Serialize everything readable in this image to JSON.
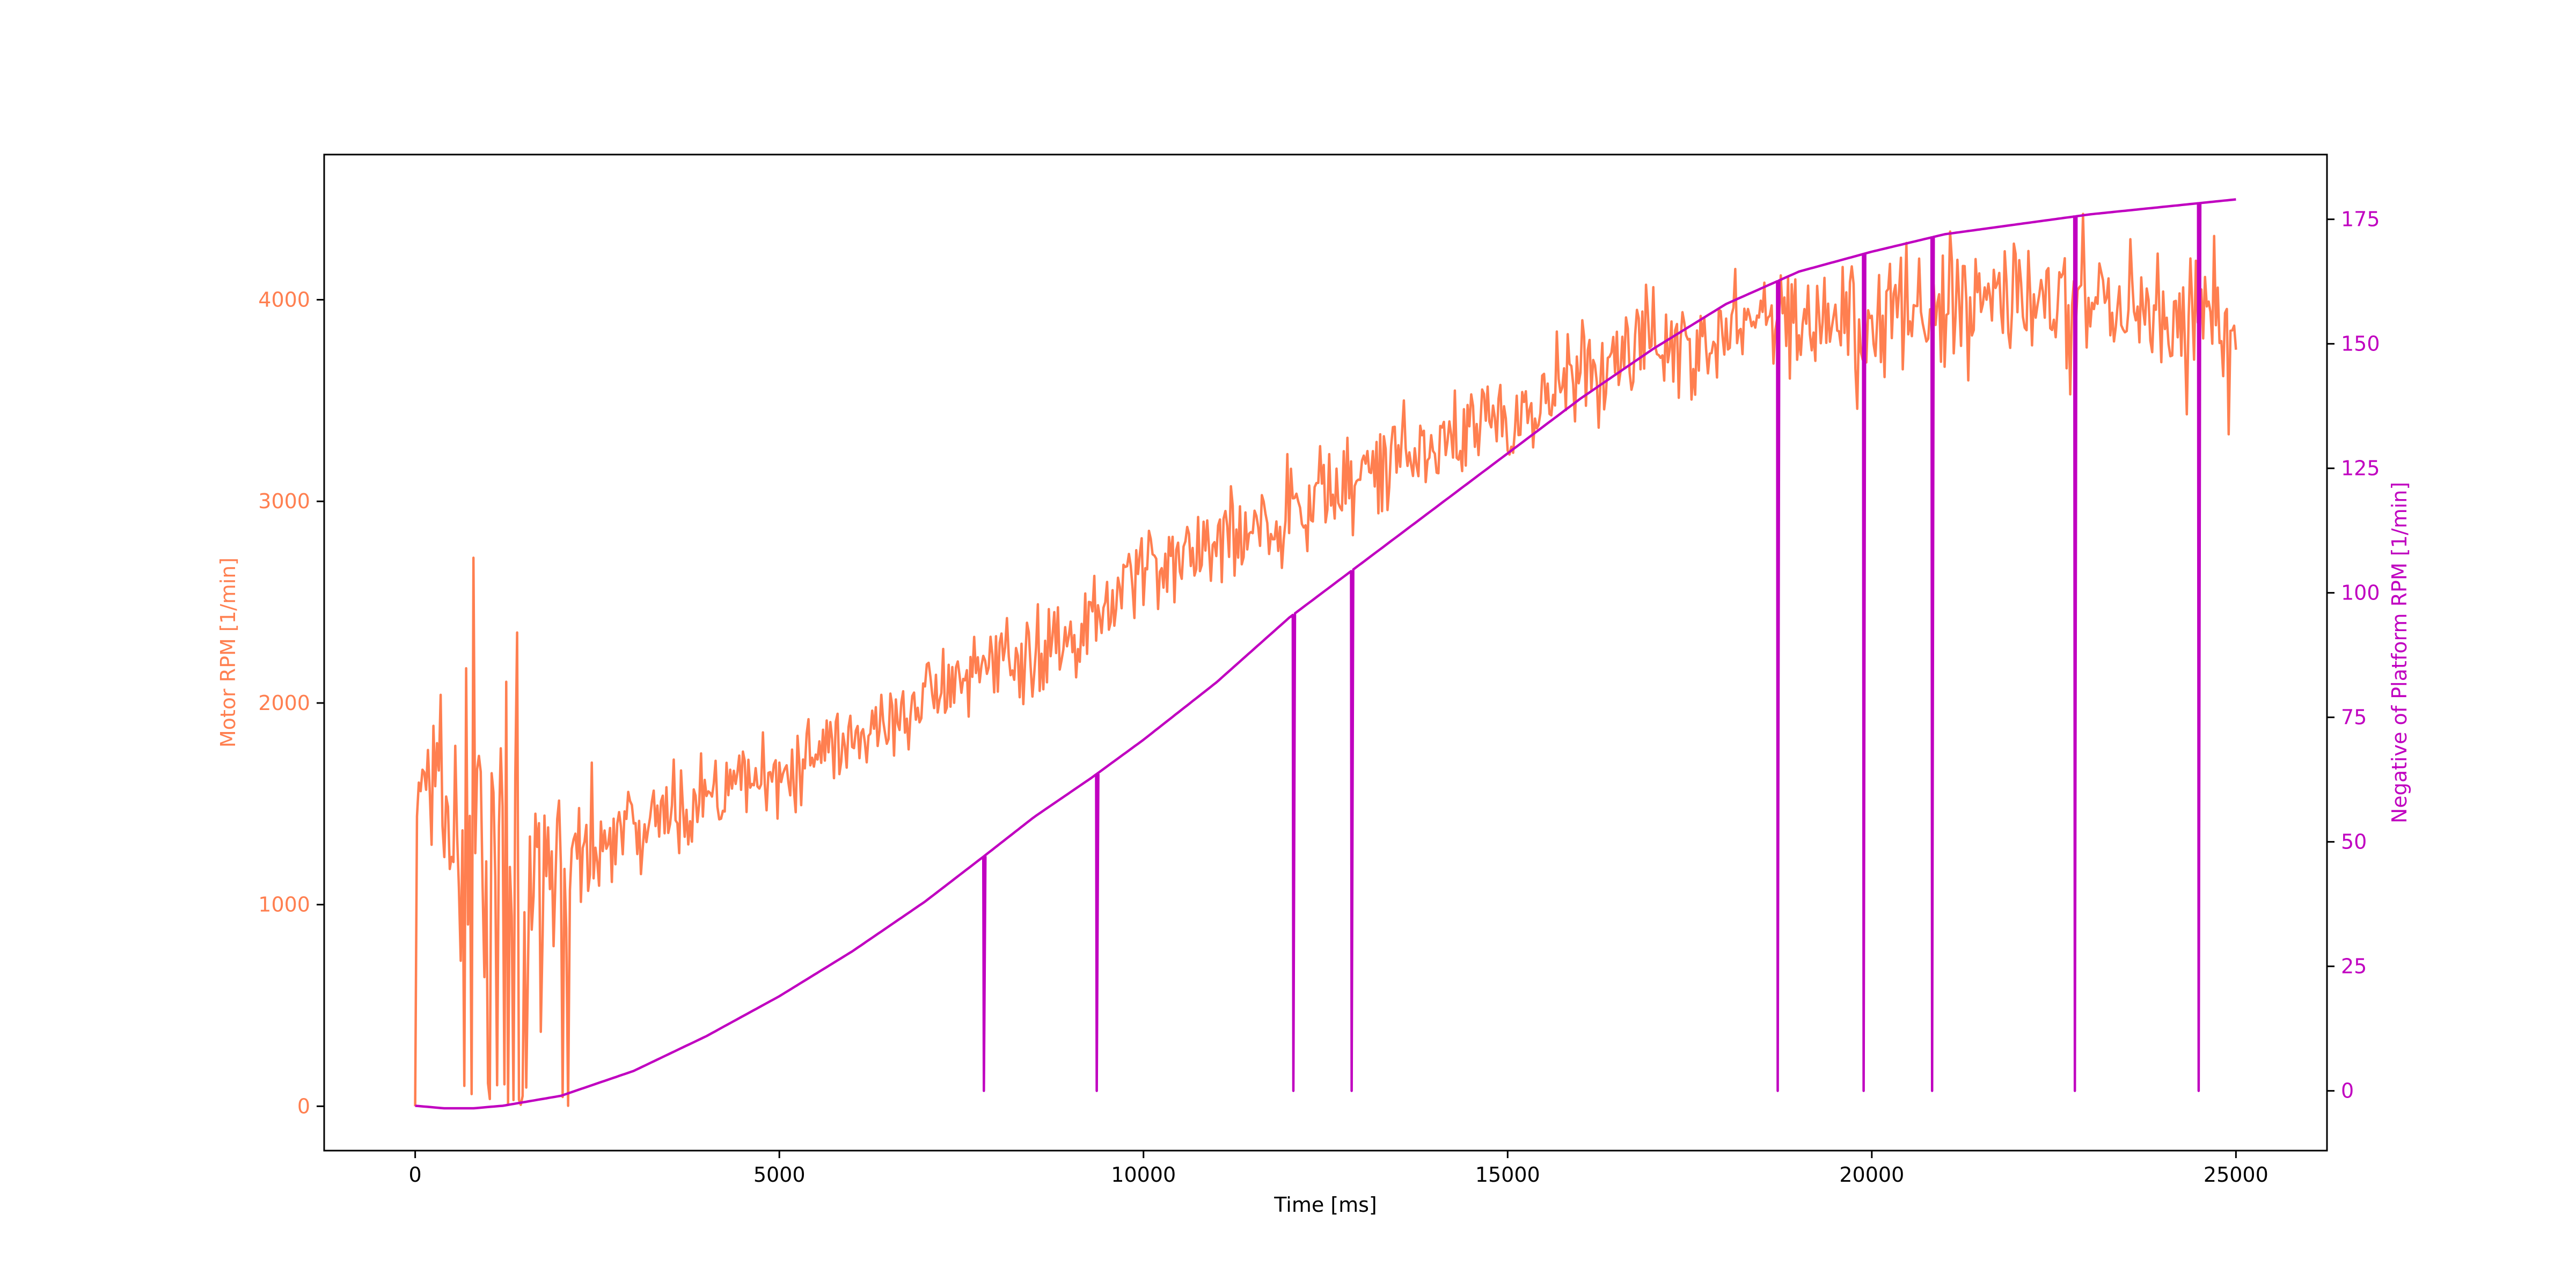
{
  "chart_data": {
    "type": "line",
    "title": "",
    "xlabel": "Time [ms]",
    "ylabel": "Motor RPM [1/min]",
    "y2label": "Negative of Platform RPM [1/min]",
    "xlim": [
      -1250,
      26250
    ],
    "ylim": [
      -220,
      4720
    ],
    "y2lim": [
      -12,
      188
    ],
    "x_ticks": [
      0,
      5000,
      10000,
      15000,
      20000,
      25000
    ],
    "y_ticks": [
      0,
      1000,
      2000,
      3000,
      4000
    ],
    "y2_ticks": [
      0,
      25,
      50,
      75,
      100,
      125,
      150,
      175
    ],
    "grid": false,
    "series": [
      {
        "color": "#ff7f50",
        "axis": "left",
        "trend": [
          [
            0,
            0
          ],
          [
            30,
            1650
          ],
          [
            300,
            1600
          ],
          [
            800,
            1300
          ],
          [
            2000,
            1200
          ],
          [
            3000,
            1400
          ],
          [
            5000,
            1650
          ],
          [
            7000,
            2000
          ],
          [
            9000,
            2350
          ],
          [
            10000,
            2650
          ],
          [
            12000,
            2950
          ],
          [
            14000,
            3300
          ],
          [
            16000,
            3600
          ],
          [
            17000,
            3800
          ],
          [
            18000,
            3880
          ],
          [
            20000,
            3950
          ],
          [
            22000,
            3980
          ],
          [
            24000,
            3950
          ],
          [
            25000,
            3850
          ]
        ],
        "noise": [
          [
            0,
            150
          ],
          [
            300,
            500
          ],
          [
            600,
            1500
          ],
          [
            1500,
            1450
          ],
          [
            2200,
            450
          ],
          [
            4000,
            300
          ],
          [
            9000,
            300
          ],
          [
            13000,
            380
          ],
          [
            16000,
            420
          ],
          [
            25000,
            500
          ]
        ],
        "drop_zones": [
          [
            550,
            1550
          ],
          [
            1900,
            2150
          ]
        ],
        "step_ms": 25
      },
      {
        "color": "#c000c0",
        "axis": "right",
        "curve": [
          [
            0,
            -3
          ],
          [
            400,
            -3.5
          ],
          [
            800,
            -3.5
          ],
          [
            1200,
            -3
          ],
          [
            2000,
            -1
          ],
          [
            3000,
            4
          ],
          [
            4000,
            11
          ],
          [
            5000,
            19
          ],
          [
            6000,
            28
          ],
          [
            7000,
            38
          ],
          [
            7800,
            47
          ],
          [
            8500,
            55
          ],
          [
            9300,
            63
          ],
          [
            10000,
            70.5
          ],
          [
            11000,
            82
          ],
          [
            12000,
            95
          ],
          [
            13000,
            106
          ],
          [
            14000,
            117
          ],
          [
            15000,
            128
          ],
          [
            16000,
            139
          ],
          [
            17000,
            149
          ],
          [
            18000,
            158
          ],
          [
            19000,
            164.5
          ],
          [
            20000,
            168.5
          ],
          [
            21000,
            172
          ],
          [
            22000,
            174
          ],
          [
            23000,
            176
          ],
          [
            24000,
            177.5
          ],
          [
            25000,
            179
          ]
        ],
        "dropouts": [
          7800,
          9350,
          12050,
          12850,
          18700,
          19880,
          20820,
          22780,
          24480
        ]
      }
    ]
  }
}
